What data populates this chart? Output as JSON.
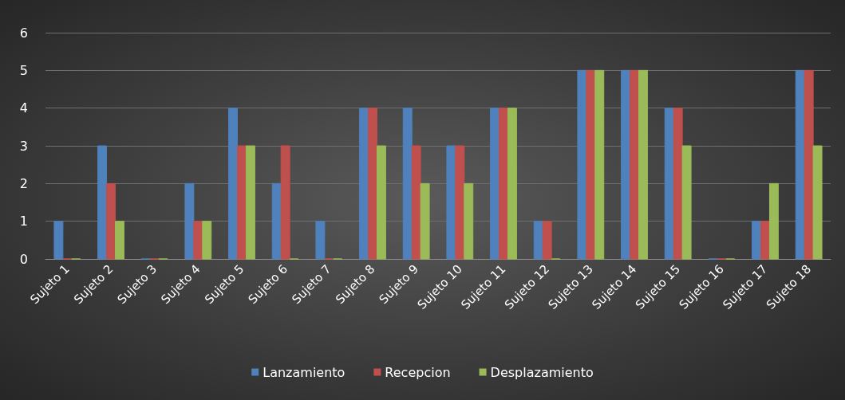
{
  "chart_data": {
    "type": "bar",
    "categories": [
      "Sujeto 1",
      "Sujeto 2",
      "Sujeto 3",
      "Sujeto 4",
      "Sujeto 5",
      "Sujeto 6",
      "Sujeto 7",
      "Sujeto 8",
      "Sujeto 9",
      "Sujeto 10",
      "Sujeto 11",
      "Sujeto 12",
      "Sujeto 13",
      "Sujeto 14",
      "Sujeto 15",
      "Sujeto 16",
      "Sujeto 17",
      "Sujeto 18"
    ],
    "series": [
      {
        "name": "Lanzamiento",
        "color": "#4f81bd",
        "values": [
          1,
          3,
          0,
          2,
          4,
          2,
          1,
          4,
          4,
          3,
          4,
          1,
          5,
          5,
          4,
          0,
          1,
          5
        ]
      },
      {
        "name": "Recepcion",
        "color": "#c0504d",
        "values": [
          0,
          2,
          0,
          1,
          3,
          3,
          0,
          4,
          3,
          3,
          4,
          1,
          5,
          5,
          4,
          0,
          1,
          5
        ]
      },
      {
        "name": "Desplazamiento",
        "color": "#9bbb59",
        "values": [
          0,
          1,
          0,
          1,
          3,
          0,
          0,
          3,
          2,
          2,
          4,
          0,
          5,
          5,
          3,
          0,
          2,
          3
        ]
      }
    ],
    "ylim": [
      0,
      6
    ],
    "yticks": [
      0,
      1,
      2,
      3,
      4,
      5,
      6
    ],
    "grid": "y",
    "legend": "bottom"
  }
}
